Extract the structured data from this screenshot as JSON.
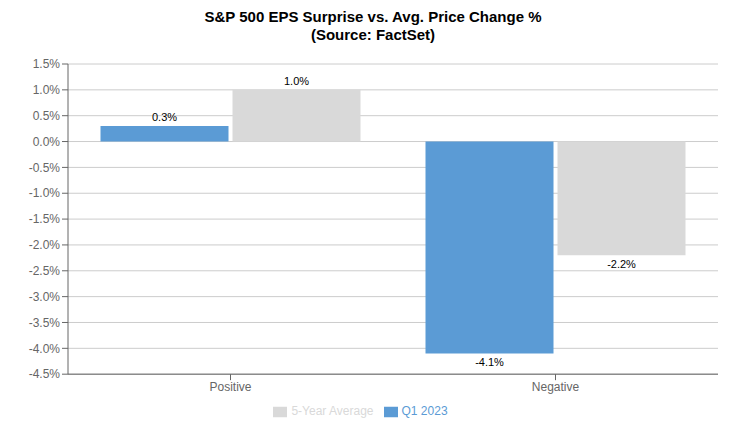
{
  "chart_data": {
    "type": "bar",
    "title": "S&P 500 EPS Surprise vs. Avg. Price Change %",
    "subtitle": "(Source: FactSet)",
    "categories": [
      "Positive",
      "Negative"
    ],
    "series": [
      {
        "name": "Q1 2023",
        "color": "#5B9BD5",
        "values": [
          0.3,
          -4.1
        ],
        "value_labels": [
          "0.3%",
          "-4.1%"
        ]
      },
      {
        "name": "5-Year Average",
        "color": "#D9D9D9",
        "values": [
          1.0,
          -2.2
        ],
        "value_labels": [
          "1.0%",
          "-2.2%"
        ]
      }
    ],
    "ylim": [
      -4.5,
      1.5
    ],
    "yticks": [
      {
        "value": -4.5,
        "label": "-4.5%"
      },
      {
        "value": -4.0,
        "label": "-4.0%"
      },
      {
        "value": -3.5,
        "label": "-3.5%"
      },
      {
        "value": -3.0,
        "label": "-3.0%"
      },
      {
        "value": -2.5,
        "label": "-2.5%"
      },
      {
        "value": -2.0,
        "label": "-2.0%"
      },
      {
        "value": -1.5,
        "label": "-1.5%"
      },
      {
        "value": -1.0,
        "label": "-1.0%"
      },
      {
        "value": -0.5,
        "label": "-0.5%"
      },
      {
        "value": 0.0,
        "label": "0.0%"
      },
      {
        "value": 0.5,
        "label": "0.5%"
      },
      {
        "value": 1.0,
        "label": "1.0%"
      },
      {
        "value": 1.5,
        "label": "1.5%"
      }
    ],
    "grid": true,
    "legend": "bottom",
    "data_labels": true
  }
}
